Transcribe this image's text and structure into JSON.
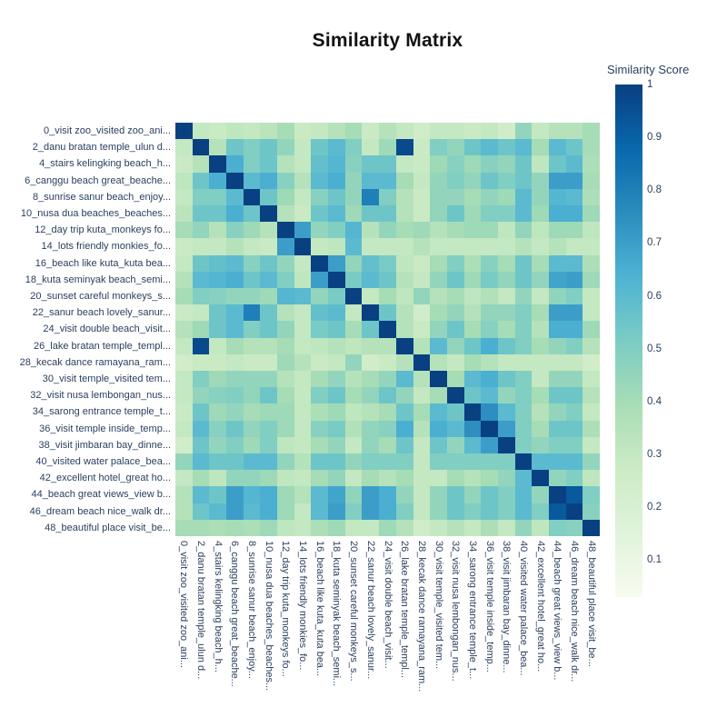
{
  "colors": {
    "background": "#ffffff",
    "title_color": "#111111",
    "label_color": "#2a3f5f",
    "max_color": "#084081"
  },
  "chart_data": {
    "type": "heatmap",
    "title": "Similarity Matrix",
    "legend_title": "Similarity Score",
    "legend_position": "right",
    "grid": false,
    "zmin": 0.03,
    "zmax": 1.0,
    "colorbar_ticks": [
      "1",
      "0.9",
      "0.8",
      "0.7",
      "0.6",
      "0.5",
      "0.4",
      "0.3",
      "0.2",
      "0.1"
    ],
    "colorbar_tick_values": [
      1.0,
      0.9,
      0.8,
      0.7,
      0.6,
      0.5,
      0.4,
      0.3,
      0.2,
      0.1
    ],
    "colorscale_name": "GnBu",
    "colorscale": [
      [
        0.0,
        "#f7fcf0"
      ],
      [
        0.125,
        "#e0f3db"
      ],
      [
        0.25,
        "#ccebc5"
      ],
      [
        0.375,
        "#a8ddb5"
      ],
      [
        0.5,
        "#7bccc4"
      ],
      [
        0.625,
        "#4eb3d3"
      ],
      [
        0.75,
        "#2b8cbe"
      ],
      [
        0.875,
        "#0868ac"
      ],
      [
        1.0,
        "#084081"
      ]
    ],
    "labels": [
      "0_visit zoo_visited zoo_ani...",
      "2_danu bratan temple_ulun d...",
      "4_stairs kelingking beach_h...",
      "6_canggu beach great_beache...",
      "8_sunrise sanur beach_enjoy...",
      "10_nusa dua beaches_beaches...",
      "12_day trip kuta_monkeys fo...",
      "14_lots friendly monkies_fo...",
      "16_beach like kuta_kuta bea...",
      "18_kuta seminyak beach_semi...",
      "20_sunset careful monkeys_s...",
      "22_sanur beach lovely_sanur...",
      "24_visit double beach_visit...",
      "26_lake bratan temple_templ...",
      "28_kecak dance ramayana_ram...",
      "30_visit temple_visited tem...",
      "32_visit nusa lembongan_nus...",
      "34_sarong entrance temple_t...",
      "36_visit temple inside_temp...",
      "38_visit jimbaran bay_dinne...",
      "40_visited water palace_bea...",
      "42_excellent hotel_great ho...",
      "44_beach great views_view b...",
      "46_dream beach nice_walk dr...",
      "48_beautiful place visit_be..."
    ],
    "matrix": [
      [
        1.0,
        0.3,
        0.28,
        0.32,
        0.3,
        0.33,
        0.4,
        0.28,
        0.3,
        0.35,
        0.4,
        0.28,
        0.35,
        0.3,
        0.25,
        0.3,
        0.3,
        0.28,
        0.3,
        0.25,
        0.45,
        0.3,
        0.35,
        0.35,
        0.4
      ],
      [
        0.3,
        1.0,
        0.35,
        0.55,
        0.5,
        0.55,
        0.45,
        0.3,
        0.55,
        0.6,
        0.5,
        0.3,
        0.42,
        0.97,
        0.28,
        0.5,
        0.45,
        0.55,
        0.6,
        0.55,
        0.6,
        0.4,
        0.6,
        0.55,
        0.4
      ],
      [
        0.28,
        0.35,
        1.0,
        0.65,
        0.5,
        0.55,
        0.35,
        0.3,
        0.58,
        0.62,
        0.48,
        0.55,
        0.55,
        0.3,
        0.28,
        0.42,
        0.48,
        0.42,
        0.48,
        0.45,
        0.55,
        0.32,
        0.55,
        0.6,
        0.38
      ],
      [
        0.32,
        0.55,
        0.65,
        1.0,
        0.6,
        0.65,
        0.48,
        0.35,
        0.6,
        0.65,
        0.45,
        0.6,
        0.6,
        0.4,
        0.3,
        0.45,
        0.5,
        0.45,
        0.55,
        0.5,
        0.55,
        0.45,
        0.7,
        0.7,
        0.4
      ],
      [
        0.3,
        0.5,
        0.5,
        0.6,
        1.0,
        0.55,
        0.42,
        0.3,
        0.48,
        0.55,
        0.45,
        0.8,
        0.5,
        0.35,
        0.28,
        0.45,
        0.45,
        0.4,
        0.45,
        0.42,
        0.6,
        0.45,
        0.62,
        0.6,
        0.38
      ],
      [
        0.33,
        0.55,
        0.55,
        0.65,
        0.55,
        1.0,
        0.35,
        0.28,
        0.55,
        0.6,
        0.42,
        0.55,
        0.55,
        0.35,
        0.28,
        0.45,
        0.55,
        0.42,
        0.5,
        0.5,
        0.6,
        0.42,
        0.65,
        0.65,
        0.42
      ],
      [
        0.4,
        0.45,
        0.35,
        0.48,
        0.42,
        0.35,
        1.0,
        0.7,
        0.45,
        0.5,
        0.62,
        0.35,
        0.45,
        0.4,
        0.42,
        0.35,
        0.4,
        0.42,
        0.42,
        0.32,
        0.45,
        0.32,
        0.42,
        0.42,
        0.32
      ],
      [
        0.28,
        0.3,
        0.3,
        0.35,
        0.3,
        0.28,
        0.7,
        1.0,
        0.3,
        0.32,
        0.6,
        0.3,
        0.3,
        0.3,
        0.35,
        0.3,
        0.3,
        0.3,
        0.3,
        0.3,
        0.35,
        0.3,
        0.35,
        0.3,
        0.3
      ],
      [
        0.3,
        0.55,
        0.58,
        0.6,
        0.48,
        0.55,
        0.45,
        0.3,
        1.0,
        0.7,
        0.45,
        0.58,
        0.52,
        0.32,
        0.28,
        0.4,
        0.5,
        0.38,
        0.48,
        0.4,
        0.55,
        0.4,
        0.6,
        0.6,
        0.38
      ],
      [
        0.35,
        0.6,
        0.62,
        0.65,
        0.55,
        0.6,
        0.5,
        0.32,
        0.7,
        1.0,
        0.52,
        0.6,
        0.55,
        0.35,
        0.3,
        0.45,
        0.55,
        0.42,
        0.52,
        0.45,
        0.55,
        0.45,
        0.68,
        0.7,
        0.42
      ],
      [
        0.4,
        0.5,
        0.48,
        0.45,
        0.45,
        0.42,
        0.62,
        0.6,
        0.45,
        0.52,
        1.0,
        0.3,
        0.4,
        0.32,
        0.45,
        0.35,
        0.4,
        0.32,
        0.36,
        0.3,
        0.45,
        0.3,
        0.46,
        0.5,
        0.3
      ],
      [
        0.28,
        0.3,
        0.55,
        0.6,
        0.8,
        0.55,
        0.35,
        0.3,
        0.58,
        0.6,
        0.3,
        1.0,
        0.55,
        0.35,
        0.25,
        0.4,
        0.45,
        0.35,
        0.45,
        0.45,
        0.5,
        0.4,
        0.7,
        0.7,
        0.3
      ],
      [
        0.35,
        0.42,
        0.55,
        0.6,
        0.5,
        0.55,
        0.45,
        0.3,
        0.52,
        0.55,
        0.4,
        0.55,
        1.0,
        0.35,
        0.28,
        0.45,
        0.55,
        0.4,
        0.48,
        0.4,
        0.5,
        0.35,
        0.65,
        0.65,
        0.42
      ],
      [
        0.3,
        0.97,
        0.3,
        0.4,
        0.35,
        0.35,
        0.4,
        0.3,
        0.32,
        0.35,
        0.32,
        0.35,
        0.35,
        1.0,
        0.35,
        0.6,
        0.45,
        0.55,
        0.65,
        0.55,
        0.5,
        0.4,
        0.45,
        0.5,
        0.35
      ],
      [
        0.25,
        0.28,
        0.28,
        0.3,
        0.28,
        0.28,
        0.42,
        0.35,
        0.28,
        0.3,
        0.45,
        0.25,
        0.28,
        0.35,
        1.0,
        0.35,
        0.3,
        0.4,
        0.35,
        0.3,
        0.3,
        0.3,
        0.3,
        0.3,
        0.25
      ],
      [
        0.3,
        0.5,
        0.42,
        0.45,
        0.45,
        0.45,
        0.35,
        0.3,
        0.4,
        0.45,
        0.35,
        0.4,
        0.45,
        0.6,
        0.35,
        1.0,
        0.4,
        0.6,
        0.65,
        0.55,
        0.5,
        0.3,
        0.45,
        0.45,
        0.3
      ],
      [
        0.3,
        0.45,
        0.48,
        0.5,
        0.45,
        0.55,
        0.4,
        0.3,
        0.5,
        0.55,
        0.4,
        0.45,
        0.55,
        0.45,
        0.3,
        0.4,
        1.0,
        0.55,
        0.6,
        0.45,
        0.5,
        0.4,
        0.55,
        0.55,
        0.35
      ],
      [
        0.28,
        0.55,
        0.42,
        0.45,
        0.4,
        0.42,
        0.42,
        0.3,
        0.38,
        0.42,
        0.32,
        0.35,
        0.4,
        0.55,
        0.4,
        0.6,
        0.55,
        1.0,
        0.75,
        0.6,
        0.5,
        0.35,
        0.45,
        0.5,
        0.3
      ],
      [
        0.3,
        0.6,
        0.48,
        0.55,
        0.45,
        0.5,
        0.42,
        0.3,
        0.48,
        0.52,
        0.36,
        0.45,
        0.48,
        0.65,
        0.35,
        0.65,
        0.6,
        0.75,
        1.0,
        0.7,
        0.5,
        0.4,
        0.55,
        0.55,
        0.38
      ],
      [
        0.25,
        0.55,
        0.45,
        0.5,
        0.42,
        0.5,
        0.32,
        0.3,
        0.4,
        0.45,
        0.3,
        0.45,
        0.4,
        0.55,
        0.3,
        0.55,
        0.45,
        0.6,
        0.7,
        1.0,
        0.5,
        0.45,
        0.5,
        0.5,
        0.3
      ],
      [
        0.45,
        0.6,
        0.55,
        0.55,
        0.6,
        0.6,
        0.45,
        0.35,
        0.55,
        0.55,
        0.45,
        0.5,
        0.5,
        0.5,
        0.3,
        0.5,
        0.5,
        0.5,
        0.5,
        0.5,
        1.0,
        0.6,
        0.6,
        0.6,
        0.45
      ],
      [
        0.3,
        0.4,
        0.32,
        0.45,
        0.45,
        0.42,
        0.32,
        0.3,
        0.4,
        0.45,
        0.3,
        0.4,
        0.35,
        0.4,
        0.3,
        0.3,
        0.4,
        0.35,
        0.4,
        0.45,
        0.6,
        1.0,
        0.45,
        0.5,
        0.32
      ],
      [
        0.35,
        0.6,
        0.55,
        0.7,
        0.62,
        0.65,
        0.42,
        0.35,
        0.6,
        0.68,
        0.46,
        0.7,
        0.65,
        0.45,
        0.3,
        0.45,
        0.55,
        0.45,
        0.55,
        0.5,
        0.6,
        0.45,
        1.0,
        0.92,
        0.5
      ],
      [
        0.35,
        0.55,
        0.6,
        0.7,
        0.6,
        0.65,
        0.42,
        0.3,
        0.6,
        0.7,
        0.5,
        0.7,
        0.65,
        0.5,
        0.3,
        0.45,
        0.55,
        0.5,
        0.55,
        0.5,
        0.6,
        0.5,
        0.92,
        1.0,
        0.48
      ],
      [
        0.4,
        0.4,
        0.38,
        0.4,
        0.38,
        0.42,
        0.32,
        0.3,
        0.38,
        0.42,
        0.3,
        0.3,
        0.42,
        0.35,
        0.25,
        0.3,
        0.35,
        0.3,
        0.38,
        0.3,
        0.45,
        0.32,
        0.5,
        0.48,
        1.0
      ]
    ]
  }
}
